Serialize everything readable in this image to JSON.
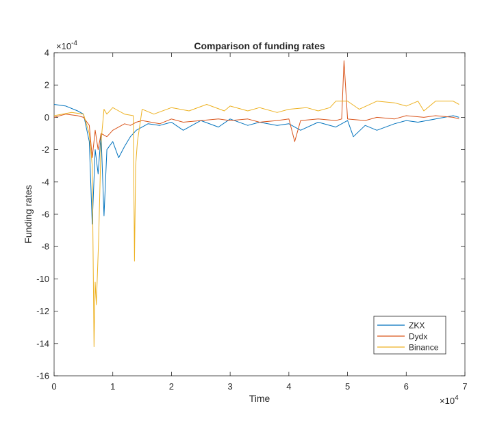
{
  "chart_data": {
    "type": "line",
    "title": "Comparison of funding rates",
    "xlabel": "Time",
    "ylabel": "Funding rates",
    "x_exponent": "×10",
    "x_exponent_power": "4",
    "y_exponent": "×10",
    "y_exponent_power": "-4",
    "xlim": [
      0,
      70000
    ],
    "ylim": [
      -0.0016,
      0.0004
    ],
    "x_ticks": [
      0,
      10000,
      20000,
      30000,
      40000,
      50000,
      60000,
      70000
    ],
    "x_tick_labels": [
      "0",
      "1",
      "2",
      "3",
      "4",
      "5",
      "6",
      "7"
    ],
    "y_ticks": [
      -0.0016,
      -0.0014,
      -0.0012,
      -0.001,
      -0.0008,
      -0.0006,
      -0.0004,
      -0.0002,
      0,
      0.0002,
      0.0004
    ],
    "y_tick_labels": [
      "-16",
      "-14",
      "-12",
      "-10",
      "-8",
      "-6",
      "-4",
      "-2",
      "0",
      "2",
      "4"
    ],
    "grid": false,
    "legend_position": "bottom-right",
    "series": [
      {
        "name": "ZKX",
        "color": "#0072BD",
        "x": [
          0,
          2000,
          4000,
          5000,
          6000,
          6500,
          7000,
          7500,
          8000,
          8500,
          9000,
          10000,
          11000,
          12000,
          13000,
          14000,
          15000,
          16000,
          18000,
          20000,
          22000,
          25000,
          28000,
          30000,
          33000,
          35000,
          38000,
          40000,
          42000,
          45000,
          48000,
          50000,
          51000,
          53000,
          55000,
          58000,
          60000,
          62000,
          65000,
          68000,
          69000
        ],
        "y": [
          8e-05,
          7e-05,
          4e-05,
          2e-05,
          -0.00015,
          -0.00066,
          -0.0002,
          -0.00035,
          -0.0001,
          -0.00061,
          -0.0002,
          -0.00015,
          -0.00025,
          -0.00018,
          -0.00012,
          -8e-05,
          -6e-05,
          -4e-05,
          -5e-05,
          -3e-05,
          -8e-05,
          -2e-05,
          -6e-05,
          -1e-05,
          -5e-05,
          -3e-05,
          -5e-05,
          -4e-05,
          -8e-05,
          -3e-05,
          -6e-05,
          -2e-05,
          -0.00012,
          -5e-05,
          -8e-05,
          -4e-05,
          -2e-05,
          -3e-05,
          -1e-05,
          1e-05,
          0.0
        ]
      },
      {
        "name": "Dydx",
        "color": "#D95319",
        "x": [
          0,
          2000,
          4000,
          5000,
          6000,
          6500,
          7000,
          7500,
          8000,
          9000,
          10000,
          11000,
          12000,
          13000,
          14000,
          15000,
          18000,
          20000,
          22000,
          25000,
          28000,
          30000,
          33000,
          35000,
          38000,
          40000,
          41000,
          42000,
          45000,
          48000,
          49000,
          49400,
          50000,
          53000,
          55000,
          58000,
          60000,
          63000,
          65000,
          68000,
          69000
        ],
        "y": [
          0.0,
          2e-05,
          1e-05,
          0.0,
          -5e-05,
          -0.00025,
          -8e-05,
          -0.0002,
          -0.0001,
          -0.00012,
          -8e-05,
          -6e-05,
          -4e-05,
          -5e-05,
          -3e-05,
          -2e-05,
          -4e-05,
          -1e-05,
          -3e-05,
          -2e-05,
          -1e-05,
          -2e-05,
          -1e-05,
          -3e-05,
          -2e-05,
          -1e-05,
          -0.00015,
          -2e-05,
          -1e-05,
          -2e-05,
          -1e-05,
          0.00035,
          -1e-05,
          -2e-05,
          0.0,
          -1e-05,
          1e-05,
          0.0,
          1e-05,
          0.0,
          -1e-05
        ]
      },
      {
        "name": "Binance",
        "color": "#EDB120",
        "x": [
          0,
          3000,
          5000,
          6000,
          6500,
          6800,
          7000,
          7200,
          7600,
          8000,
          8500,
          9000,
          10000,
          11000,
          12000,
          13500,
          13700,
          13900,
          14200,
          15000,
          17000,
          20000,
          23000,
          26000,
          29000,
          30000,
          33000,
          35000,
          38000,
          40000,
          43000,
          45000,
          47000,
          48000,
          50000,
          52000,
          55000,
          58000,
          60000,
          62000,
          63000,
          65000,
          68000,
          69000
        ],
        "y": [
          1e-05,
          3e-05,
          2e-05,
          -0.0001,
          -0.0003,
          -0.00142,
          -0.00102,
          -0.00116,
          -0.00075,
          -0.00015,
          5e-05,
          2e-05,
          6e-05,
          4e-05,
          2e-05,
          1e-05,
          -0.00089,
          -0.0003,
          -0.00015,
          5e-05,
          2e-05,
          6e-05,
          4e-05,
          8e-05,
          4e-05,
          7e-05,
          4e-05,
          6e-05,
          3e-05,
          5e-05,
          6e-05,
          4e-05,
          6e-05,
          0.0001,
          0.0001,
          5e-05,
          0.0001,
          9e-05,
          7e-05,
          0.0001,
          4e-05,
          0.0001,
          0.0001,
          8e-05
        ]
      }
    ]
  }
}
